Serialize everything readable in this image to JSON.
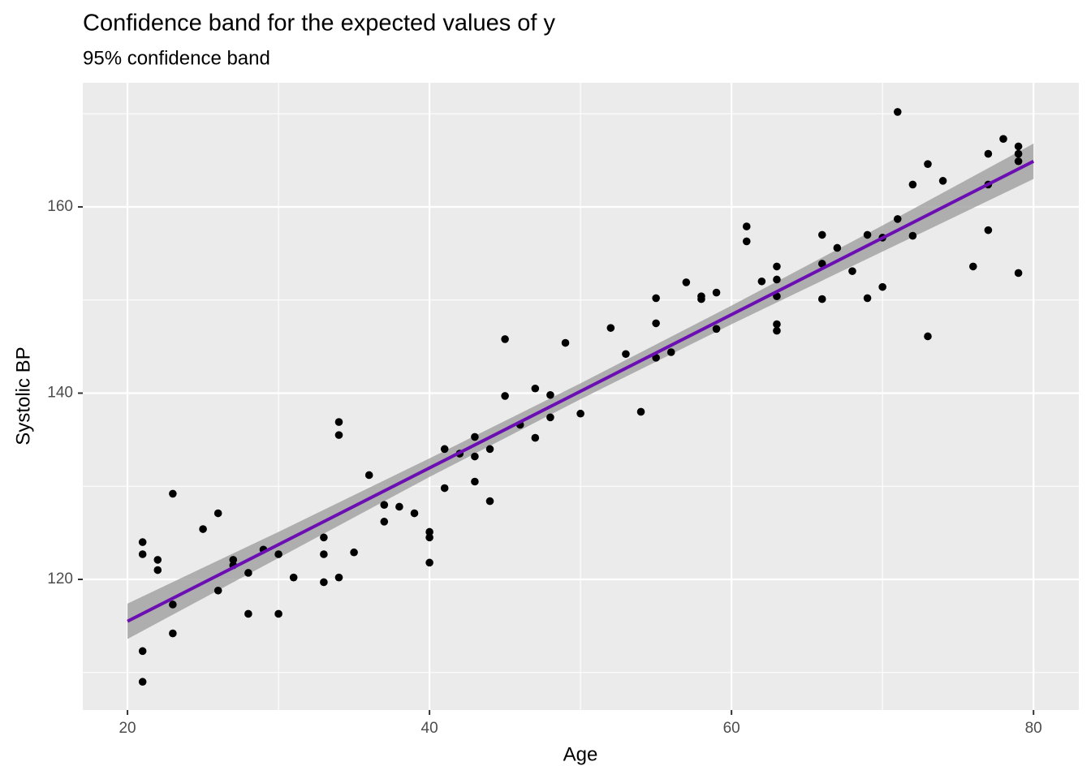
{
  "chart_data": {
    "type": "scatter",
    "title": "Confidence band for the expected values of y",
    "subtitle": "95% confidence band",
    "x_label": "Age",
    "y_label": "Systolic BP",
    "xlim": [
      17.04,
      83.0
    ],
    "ylim": [
      105.97,
      173.33
    ],
    "xticks": [
      20,
      40,
      60,
      80
    ],
    "yticks": [
      120,
      140,
      160
    ],
    "xminorticks": [
      30,
      50,
      70
    ],
    "yminorticks": [
      110,
      130,
      150,
      170
    ],
    "grid": true,
    "point_color": "#000000",
    "x": [
      21,
      21,
      21,
      21,
      22,
      22,
      23,
      23,
      23,
      25,
      26,
      26,
      27,
      27,
      28,
      28,
      29,
      30,
      30,
      31,
      33,
      33,
      33,
      34,
      34,
      34,
      35,
      36,
      37,
      37,
      38,
      39,
      40,
      40,
      40,
      41,
      41,
      42,
      43,
      43,
      43,
      44,
      44,
      45,
      45,
      46,
      47,
      47,
      48,
      48,
      49,
      50,
      52,
      53,
      54,
      55,
      55,
      55,
      56,
      57,
      58,
      58,
      59,
      59,
      61,
      61,
      62,
      63,
      63,
      63,
      63,
      63,
      66,
      66,
      66,
      67,
      68,
      69,
      69,
      70,
      70,
      71,
      71,
      72,
      72,
      73,
      73,
      74,
      76,
      77,
      77,
      77,
      78,
      79,
      79,
      79,
      79
    ],
    "y": [
      124.0,
      122.7,
      112.3,
      109.0,
      122.1,
      121.0,
      129.2,
      117.3,
      114.2,
      125.4,
      127.1,
      118.8,
      122.1,
      121.5,
      120.7,
      116.3,
      123.2,
      122.7,
      116.3,
      120.2,
      124.5,
      122.7,
      119.7,
      136.9,
      135.5,
      120.2,
      122.9,
      131.2,
      128.0,
      126.2,
      127.8,
      127.1,
      125.1,
      124.5,
      121.8,
      134.0,
      129.8,
      133.5,
      135.3,
      133.2,
      130.5,
      134.0,
      128.4,
      145.8,
      139.7,
      136.6,
      140.5,
      135.2,
      139.8,
      137.4,
      145.4,
      137.8,
      147.0,
      144.2,
      138.0,
      150.2,
      147.5,
      143.8,
      144.4,
      151.9,
      150.4,
      150.1,
      150.8,
      146.9,
      157.9,
      156.3,
      152.0,
      153.6,
      152.2,
      150.4,
      147.4,
      146.7,
      157.0,
      153.9,
      150.1,
      155.6,
      153.1,
      157.0,
      150.2,
      156.7,
      151.4,
      170.2,
      158.7,
      162.4,
      156.9,
      164.6,
      146.1,
      162.8,
      153.6,
      165.7,
      162.4,
      157.5,
      167.3,
      166.5,
      165.7,
      164.9,
      152.9
    ],
    "fit": {
      "x": [
        20,
        80
      ],
      "y": [
        115.5,
        164.9
      ],
      "color": "#6b0fb3"
    },
    "band": {
      "x": [
        20,
        30,
        40,
        50,
        60,
        70,
        80
      ],
      "lower": [
        113.6,
        122.3,
        131.0,
        139.35,
        147.4,
        155.2,
        163.0
      ],
      "upper": [
        117.4,
        125.1,
        133.0,
        141.05,
        149.4,
        158.0,
        166.8
      ],
      "color": "#999999"
    }
  }
}
